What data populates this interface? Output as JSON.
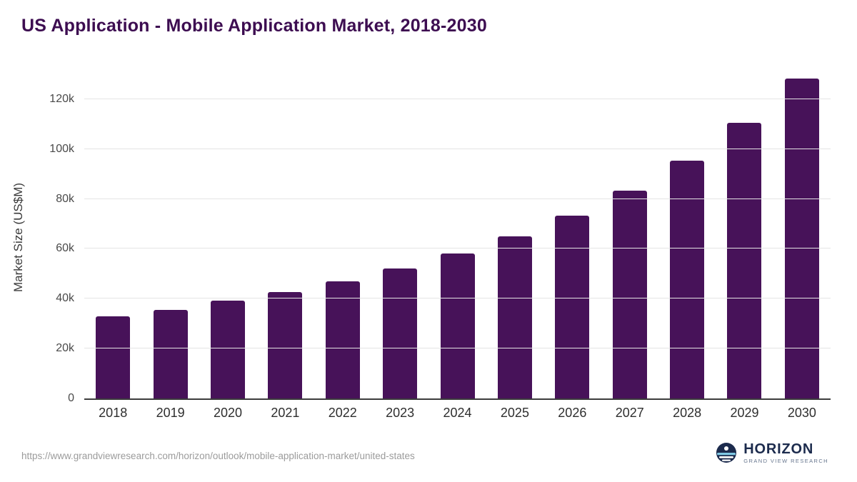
{
  "title": "US Application - Mobile Application Market, 2018-2030",
  "footer": {
    "source_url": "https://www.grandviewresearch.com/horizon/outlook/mobile-application-market/united-states",
    "logo_name": "HORIZON",
    "logo_subtext": "GRAND VIEW RESEARCH"
  },
  "colors": {
    "title": "#3d0d51",
    "bar": "#471259",
    "grid": "#e4e4e4",
    "axis_line": "#3d3d3d",
    "logo_navy": "#1c2b4d"
  },
  "chart_data": {
    "type": "bar",
    "title": "US Application - Mobile Application Market, 2018-2030",
    "xlabel": "",
    "ylabel": "Market Size (US$M)",
    "categories": [
      "2018",
      "2019",
      "2020",
      "2021",
      "2022",
      "2023",
      "2024",
      "2025",
      "2026",
      "2027",
      "2028",
      "2029",
      "2030"
    ],
    "values": [
      32800,
      35400,
      39100,
      42800,
      47100,
      52100,
      58200,
      65100,
      73400,
      83400,
      95500,
      110400,
      128300
    ],
    "ylim": [
      0,
      130000
    ],
    "yticks": [
      {
        "value": 0,
        "label": "0"
      },
      {
        "value": 20000,
        "label": "20k"
      },
      {
        "value": 40000,
        "label": "40k"
      },
      {
        "value": 60000,
        "label": "60k"
      },
      {
        "value": 80000,
        "label": "80k"
      },
      {
        "value": 100000,
        "label": "100k"
      },
      {
        "value": 120000,
        "label": "120k"
      }
    ],
    "bar_color": "#471259",
    "grid": true,
    "legend": false
  }
}
